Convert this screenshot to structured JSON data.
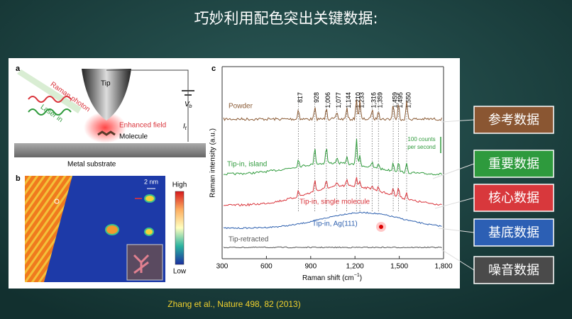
{
  "title": "巧妙利用配色突出关键数据:",
  "figure": {
    "panel_a": {
      "label": "a",
      "tip": "Tip",
      "raman_photon": "Raman photon",
      "laser_in": "Laser in",
      "enhanced_field": "Enhanced field",
      "molecule": "Molecule",
      "metal_substrate": "Metal substrate",
      "voltage": "V",
      "voltage_sub": "b",
      "current": "I",
      "current_sub": "t"
    },
    "panel_b": {
      "label": "b",
      "scale_bar": "2 nm",
      "colorbar_high": "High",
      "colorbar_low": "Low"
    },
    "panel_c": {
      "label": "c",
      "y_axis_label": "Raman intensity (a.u.)",
      "x_axis_label": "Raman shift (cm",
      "x_axis_label_sup": "−1",
      "x_axis_label_end": ")",
      "xlim": [
        300,
        1800
      ],
      "xticks": [
        300,
        600,
        900,
        {
          "value": 1200,
          "label": "1,200"
        },
        {
          "value": 1500,
          "label": "1,500"
        },
        {
          "value": 1800,
          "label": "1,800"
        }
      ],
      "peaks": [
        817,
        928,
        {
          "value": 1006,
          "label": "1,006"
        },
        {
          "value": 1077,
          "label": "1,077"
        },
        {
          "value": 1144,
          "label": "1,144"
        },
        {
          "value": 1210,
          "label": "1,210"
        },
        {
          "value": 1233,
          "label": "1,233"
        },
        {
          "value": 1316,
          "label": "1,316"
        },
        {
          "value": 1359,
          "label": "1,359"
        },
        {
          "value": 1459,
          "label": "1,459"
        },
        {
          "value": 1495,
          "label": "1,495"
        },
        {
          "value": 1550,
          "label": "1,550"
        }
      ],
      "scale_note": [
        "100 counts",
        "per second"
      ],
      "spectra": [
        {
          "name": "Powder",
          "color": "#8a5a34"
        },
        {
          "name": "Tip-in, island",
          "color": "#2f9a3c"
        },
        {
          "name": "Tip-in, single molecule",
          "color": "#d9333a"
        },
        {
          "name": "Tip-in, Ag(111)",
          "color": "#2c5fae"
        },
        {
          "name": "Tip-retracted",
          "color": "#555555"
        }
      ]
    }
  },
  "callouts": [
    {
      "text": "参考数据",
      "color": "#8a5632"
    },
    {
      "text": "重要数据",
      "color": "#2e9a3d"
    },
    {
      "text": "核心数据",
      "color": "#d8383c"
    },
    {
      "text": "基底数据",
      "color": "#2c5fb4"
    },
    {
      "text": "噪音数据",
      "color": "#4a4a4a"
    }
  ],
  "citation": "Zhang et al., Nature 498, 82 (2013)"
}
